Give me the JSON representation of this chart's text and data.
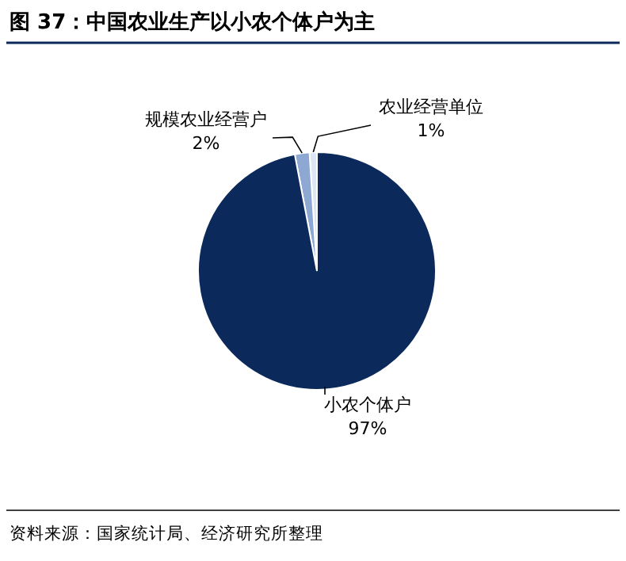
{
  "chart_data": {
    "type": "pie",
    "title": "图 37：中国农业生产以小农个体户为主",
    "categories": [
      "农业经营单位",
      "规模农业经营户",
      "小农个体户"
    ],
    "values": [
      1,
      2,
      97
    ],
    "colors": [
      "#dde6f3",
      "#8ea8d4",
      "#0b2a5b"
    ],
    "value_labels": [
      "1%",
      "2%",
      "97%"
    ],
    "annotations": [
      "资料来源：国家统计局、经济研究所整理"
    ]
  }
}
